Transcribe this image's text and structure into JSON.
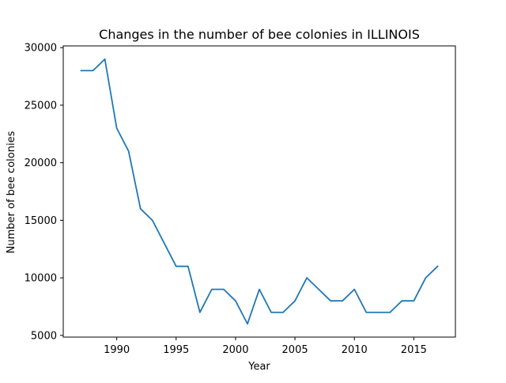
{
  "chart_data": {
    "type": "line",
    "title": "Changes in the number of bee colonies in ILLINOIS",
    "xlabel": "Year",
    "ylabel": "Number of bee colonies",
    "xlim": [
      1985.5,
      2018.5
    ],
    "ylim": [
      4850,
      30150
    ],
    "xticks": [
      1990,
      1995,
      2000,
      2005,
      2010,
      2015
    ],
    "yticks": [
      5000,
      10000,
      15000,
      20000,
      25000,
      30000
    ],
    "grid": false,
    "legend": "none",
    "series": [
      {
        "color": "#1f77b4",
        "x": [
          1987,
          1988,
          1989,
          1990,
          1991,
          1992,
          1993,
          1994,
          1995,
          1996,
          1997,
          1998,
          1999,
          2000,
          2001,
          2002,
          2003,
          2004,
          2005,
          2006,
          2007,
          2008,
          2009,
          2010,
          2011,
          2012,
          2013,
          2014,
          2015,
          2016,
          2017
        ],
        "y": [
          28000,
          28000,
          29000,
          23000,
          21000,
          16000,
          15000,
          13000,
          11000,
          11000,
          7000,
          9000,
          9000,
          8000,
          6000,
          9000,
          7000,
          7000,
          8000,
          10000,
          9000,
          8000,
          8000,
          9000,
          7000,
          7000,
          7000,
          8000,
          8000,
          10000,
          11000
        ]
      }
    ]
  }
}
